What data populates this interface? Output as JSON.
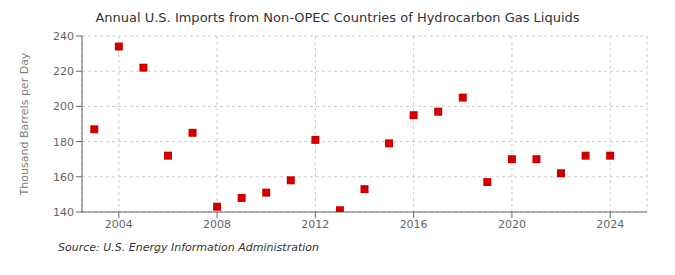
{
  "chart_data": {
    "type": "scatter",
    "title": "Annual U.S. Imports from Non-OPEC Countries of Hydrocarbon Gas Liquids",
    "ylabel": "Thousand Barrels per Day",
    "annotations": [
      "Source: U.S. Energy Information Administration"
    ],
    "x": [
      2003,
      2004,
      2005,
      2006,
      2007,
      2008,
      2009,
      2010,
      2011,
      2012,
      2013,
      2014,
      2015,
      2016,
      2017,
      2018,
      2019,
      2020,
      2021,
      2022,
      2023,
      2024
    ],
    "values": [
      187,
      234,
      222,
      172,
      185,
      143,
      148,
      151,
      158,
      181,
      141,
      153,
      179,
      195,
      197,
      205,
      157,
      170,
      170,
      162,
      172,
      172
    ],
    "color": "#cc0000",
    "marker": "square",
    "xlim": [
      2002.5,
      2025.5
    ],
    "xticks": [
      2004,
      2008,
      2012,
      2016,
      2020,
      2024
    ],
    "ylim": [
      140,
      240
    ],
    "yticks": [
      140,
      160,
      180,
      200,
      220,
      240
    ],
    "grid": true
  }
}
